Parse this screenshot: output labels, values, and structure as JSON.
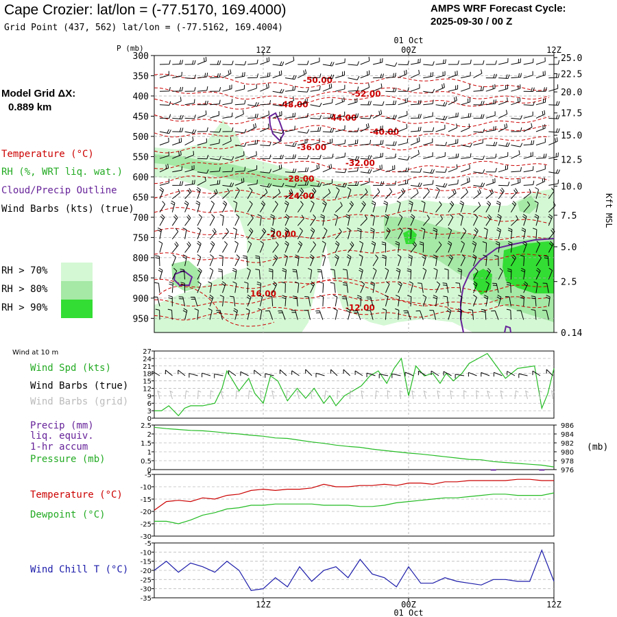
{
  "header": {
    "title": "Cape Crozier:  lat/lon = (-77.5170, 169.4000)",
    "subtitle": "Grid Point (437, 562) lat/lon = (-77.5162, 169.4004)",
    "cycle_label": "AMPS WRF Forecast Cycle:",
    "cycle_value": "2025-09-30 / 00  Z"
  },
  "model_grid": {
    "label": "Model Grid ΔX:",
    "value": "0.889 km"
  },
  "legend": {
    "temperature": "Temperature (°C)",
    "rh": "RH (%, WRT liq. wat.)",
    "cloud": "Cloud/Precip Outline",
    "wind_barbs": "Wind Barbs (kts) (true)",
    "rh70": "RH > 70%",
    "rh80": "RH > 80%",
    "rh90": "RH > 90%",
    "rh_colors": [
      "#d4f8d4",
      "#a6e8a6",
      "#33dd33"
    ],
    "wind10m": "Wind at 10 m",
    "wind_spd": "Wind Spd (kts)",
    "wind_barbs_true": "Wind Barbs (true)",
    "wind_barbs_grid": "Wind Barbs (grid)",
    "precip_l1": "Precip (mm)",
    "precip_l2": "liq. equiv.",
    "precip_l3": "1-hr accum",
    "pressure": "Pressure (mb)",
    "temp_sfc": "Temperature (°C)",
    "dewpoint": "Dewpoint (°C)",
    "windchill": "Wind Chill T (°C)"
  },
  "colors": {
    "temp": "#cc0000",
    "rh": "#22bb22",
    "cloud": "#662299",
    "blue": "#1a1aaa",
    "grid_barb": "#bbbbbb"
  },
  "chart_data": [
    {
      "type": "contour",
      "title": "Time-height cross section",
      "ylabel": "P (mb)",
      "y2label": "Kft MSL",
      "date_label": "01 Oct",
      "x_ticks": [
        {
          "hour": 12,
          "label": "12Z"
        },
        {
          "hour": 24,
          "label": "00Z"
        },
        {
          "hour": 36,
          "label": "12Z"
        }
      ],
      "xlim": [
        3,
        36
      ],
      "pressure_ticks": [
        300,
        350,
        400,
        450,
        500,
        550,
        600,
        650,
        700,
        750,
        800,
        850,
        900,
        950
      ],
      "ylim": [
        300,
        985
      ],
      "height_ticks": [
        {
          "p": 305,
          "label": "25.0"
        },
        {
          "p": 345,
          "label": "22.5"
        },
        {
          "p": 390,
          "label": "20.0"
        },
        {
          "p": 442,
          "label": "17.5"
        },
        {
          "p": 497,
          "label": "15.0"
        },
        {
          "p": 557,
          "label": "12.5"
        },
        {
          "p": 623,
          "label": "10.0"
        },
        {
          "p": 695,
          "label": "7.5"
        },
        {
          "p": 773,
          "label": "5.0"
        },
        {
          "p": 859,
          "label": "2.5"
        },
        {
          "p": 985,
          "label": "0.14"
        }
      ],
      "temp_labels": [
        {
          "t": 16.5,
          "p": 361,
          "label": "-50.00"
        },
        {
          "t": 20.5,
          "p": 395,
          "label": "-52.00"
        },
        {
          "t": 14.5,
          "p": 421,
          "label": "-48.00"
        },
        {
          "t": 18.5,
          "p": 454,
          "label": "-44.00"
        },
        {
          "t": 22.0,
          "p": 489,
          "label": "-40.00"
        },
        {
          "t": 16.0,
          "p": 527,
          "label": "-36.00"
        },
        {
          "t": 20.0,
          "p": 566,
          "label": "-32.00"
        },
        {
          "t": 15.0,
          "p": 605,
          "label": "-28.00"
        },
        {
          "t": 15.0,
          "p": 648,
          "label": "-24.00"
        },
        {
          "t": 13.5,
          "p": 742,
          "label": "-20.00"
        },
        {
          "t": 12.0,
          "p": 889,
          "label": "16.00"
        },
        {
          "t": 20.0,
          "p": 924,
          "label": "-12.00"
        }
      ]
    },
    {
      "type": "line",
      "title": "Wind at 10 m",
      "ylabel": "Wind Spd (kts)",
      "y_ticks": [
        27,
        24,
        21,
        18,
        15,
        12,
        9,
        6,
        3,
        0
      ],
      "ylim": [
        0,
        27
      ],
      "x": [
        3,
        3.6,
        4.2,
        5,
        5.5,
        6,
        7,
        8,
        8.6,
        9,
        10,
        10.8,
        11.3,
        12,
        12.6,
        13.2,
        14,
        14.8,
        15.5,
        16.2,
        17,
        17.5,
        18,
        18.7,
        19.4,
        20.1,
        20.8,
        21.5,
        22.2,
        22.8,
        23.4,
        24,
        24.6,
        25.3,
        26,
        26.6,
        27.1,
        27.7,
        28.4,
        29,
        30.5,
        32,
        33,
        34.4,
        35,
        35.5,
        36
      ],
      "values": [
        3,
        3,
        5,
        1,
        4,
        5,
        5,
        6,
        12,
        19,
        11,
        16,
        10,
        6,
        17,
        15,
        7,
        12,
        8,
        12,
        6,
        9,
        5,
        9,
        11,
        13,
        17,
        19,
        14,
        20,
        24,
        9,
        21,
        17,
        18,
        14,
        18,
        15,
        18,
        22,
        26,
        16,
        20,
        21,
        4,
        10,
        20
      ],
      "barb_count": 32
    },
    {
      "type": "line",
      "title": "Precip / Pressure",
      "y_ticks": [
        2.5,
        2.0,
        1.5,
        1.0,
        0.5,
        0.0
      ],
      "ylim": [
        0,
        2.5
      ],
      "y2_ticks": [
        986,
        984,
        982,
        980,
        978,
        976
      ],
      "y2lim": [
        976,
        986
      ],
      "y2label": "(mb)",
      "pressure_t": [
        3,
        4,
        5,
        6,
        7,
        8,
        9,
        10,
        11,
        12,
        13,
        14,
        15,
        16,
        17,
        18,
        19,
        20,
        21,
        22,
        23,
        24,
        25,
        26,
        27,
        28,
        29,
        30,
        31,
        32,
        33,
        34,
        35,
        36
      ],
      "pressure_mb": [
        985.5,
        985.2,
        985.0,
        984.8,
        984.7,
        984.5,
        984.2,
        984.0,
        983.7,
        983.5,
        983.1,
        983.0,
        982.6,
        982.2,
        981.9,
        981.5,
        981.2,
        981.0,
        980.6,
        980.3,
        980.0,
        979.7,
        979.5,
        979.2,
        978.9,
        978.6,
        978.3,
        978.2,
        977.8,
        977.6,
        977.4,
        977.2,
        977.0,
        976.6
      ],
      "precip_mm": [
        0,
        0,
        0,
        0,
        0,
        0,
        0,
        0,
        0,
        0,
        0,
        0,
        0,
        0,
        0,
        0,
        0,
        0,
        0,
        0,
        0,
        0,
        0,
        0,
        0,
        0,
        0,
        0,
        0.02,
        0,
        0,
        0,
        0.02,
        0
      ]
    },
    {
      "type": "line",
      "title": "Temperature / Dewpoint",
      "y_ticks": [
        -5,
        -10,
        -15,
        -20,
        -25,
        -30
      ],
      "ylim": [
        -30,
        -5
      ],
      "t": [
        3,
        4,
        5,
        6,
        7,
        8,
        9,
        10,
        11,
        12,
        13,
        14,
        15,
        16,
        17,
        18,
        19,
        20,
        21,
        22,
        23,
        24,
        25,
        26,
        27,
        28,
        29,
        30,
        31,
        32,
        33,
        34,
        35,
        36
      ],
      "temperature": [
        -19.5,
        -16,
        -15.5,
        -16,
        -14.5,
        -15,
        -13.5,
        -13,
        -11.5,
        -11,
        -11.5,
        -11,
        -11,
        -10.5,
        -9,
        -10,
        -10,
        -9.5,
        -9.5,
        -9,
        -9.5,
        -8.5,
        -8.5,
        -9,
        -8,
        -8,
        -7.5,
        -7.5,
        -7.5,
        -7.5,
        -7,
        -7,
        -7.5,
        -7.5
      ],
      "dewpoint": [
        -24,
        -24,
        -25,
        -23.5,
        -21.5,
        -20.5,
        -19,
        -18.5,
        -17.5,
        -17.5,
        -17,
        -17,
        -17,
        -17,
        -17.5,
        -17.5,
        -17.5,
        -18,
        -18,
        -17.5,
        -16.5,
        -16,
        -15.5,
        -15,
        -14.5,
        -14.5,
        -14,
        -13.5,
        -13,
        -13,
        -13.5,
        -13.5,
        -13.5,
        -12.5
      ]
    },
    {
      "type": "line",
      "title": "Wind Chill",
      "y_ticks": [
        -5,
        -10,
        -15,
        -20,
        -25,
        -30,
        -35
      ],
      "ylim": [
        -35,
        -5
      ],
      "t": [
        3,
        4,
        5,
        6,
        7,
        8,
        9,
        10,
        11,
        12,
        13,
        14,
        15,
        16,
        17,
        18,
        19,
        20,
        21,
        22,
        23,
        24,
        25,
        26,
        27,
        28,
        29,
        30,
        31,
        32,
        33,
        34,
        35,
        36
      ],
      "values": [
        -20,
        -15,
        -21,
        -16,
        -18,
        -21,
        -15,
        -20,
        -31,
        -30,
        -24,
        -29,
        -18,
        -26,
        -20,
        -18,
        -24,
        -14,
        -22,
        -24,
        -29,
        -18,
        -27,
        -27,
        -24,
        -26,
        -27,
        -28,
        -25,
        -25,
        -26,
        -26,
        -9,
        -26
      ]
    }
  ]
}
